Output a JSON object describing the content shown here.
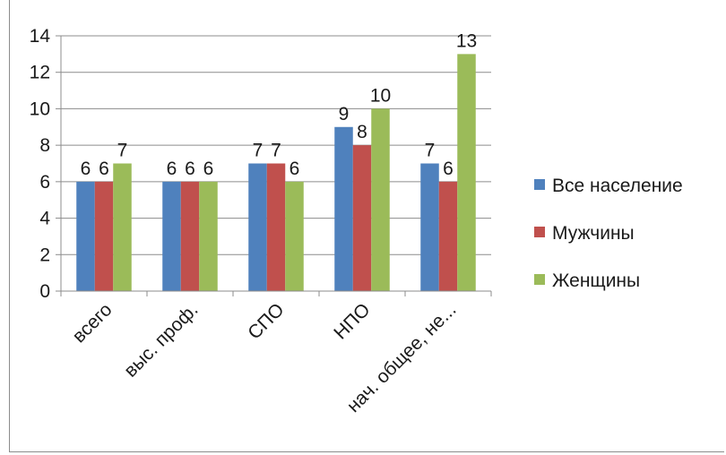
{
  "chart_data": {
    "type": "bar",
    "categories": [
      "всего",
      "выс. проф.",
      "СПО",
      "НПО",
      "нач. общее, не..."
    ],
    "series": [
      {
        "name": "Все население",
        "values": [
          6,
          6,
          7,
          9,
          7
        ],
        "labels": [
          "6",
          "6",
          "7",
          "9",
          "7"
        ],
        "color": "#4f81bd"
      },
      {
        "name": "Мужчины",
        "values": [
          6,
          6,
          7,
          8,
          6
        ],
        "labels": [
          "6",
          "6",
          "7",
          "8",
          "6"
        ],
        "color": "#c0504d"
      },
      {
        "name": "Женщины",
        "values": [
          7,
          6,
          6,
          10,
          13
        ],
        "labels": [
          "7",
          "6",
          "6",
          "10",
          "13"
        ],
        "color": "#9bbb59"
      }
    ],
    "ylim": [
      0,
      14
    ],
    "yticks": [
      0,
      2,
      4,
      6,
      8,
      10,
      12,
      14
    ],
    "grid": true,
    "legend": "right"
  }
}
